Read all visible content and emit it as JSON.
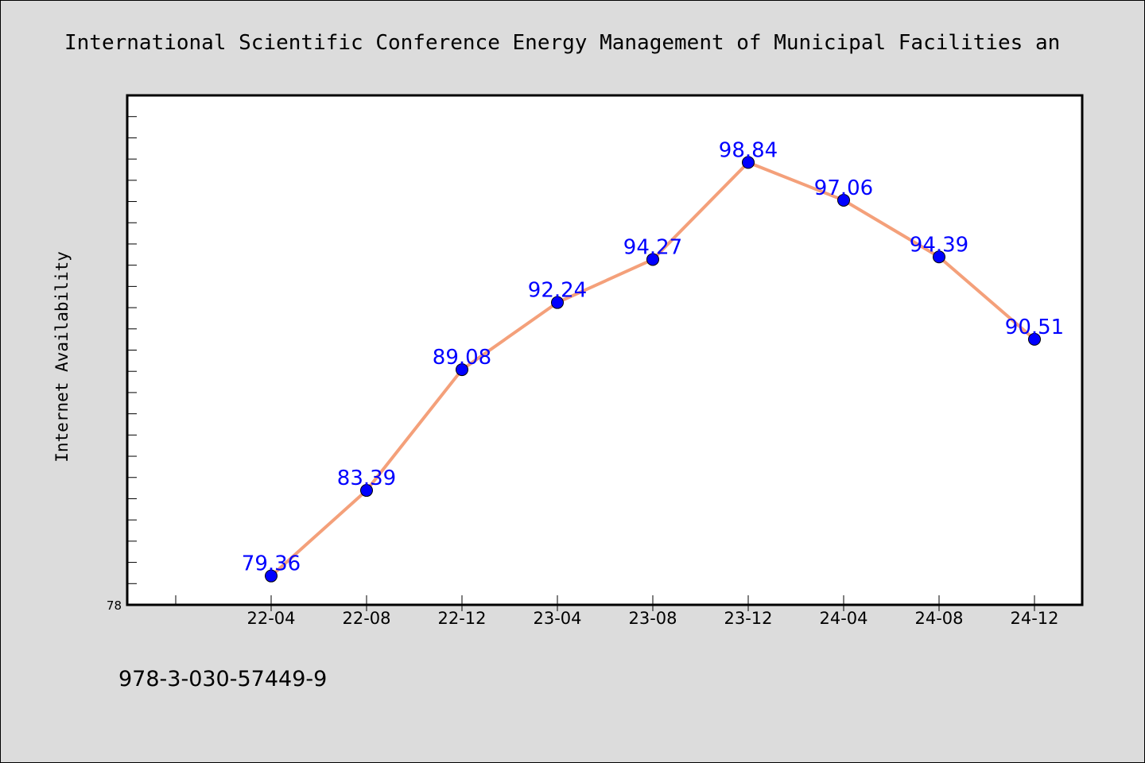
{
  "chart_data": {
    "type": "line",
    "title": "International Scientific Conference Energy Management of Municipal Facilities an",
    "xlabel": "",
    "ylabel": "Internet Availability",
    "categories": [
      "22-04",
      "22-08",
      "22-12",
      "23-04",
      "23-08",
      "23-12",
      "24-04",
      "24-08",
      "24-12"
    ],
    "series": [
      {
        "values": [
          79.36,
          83.39,
          89.08,
          92.24,
          94.27,
          98.84,
          97.06,
          94.39,
          90.51
        ],
        "data_labels": [
          "79.36",
          "83.39",
          "89.08",
          "92.24",
          "94.27",
          "98.84",
          "97.06",
          "94.39",
          "90.51"
        ]
      }
    ],
    "ylim": [
      78,
      102
    ],
    "y_tick_labels": [
      "78"
    ],
    "grid": false,
    "legend": "none",
    "line_color": "#f4a07a",
    "marker_color": "#0000ff",
    "label_color": "#0000ff"
  },
  "footer": {
    "text": "978-3-030-57449-9"
  }
}
